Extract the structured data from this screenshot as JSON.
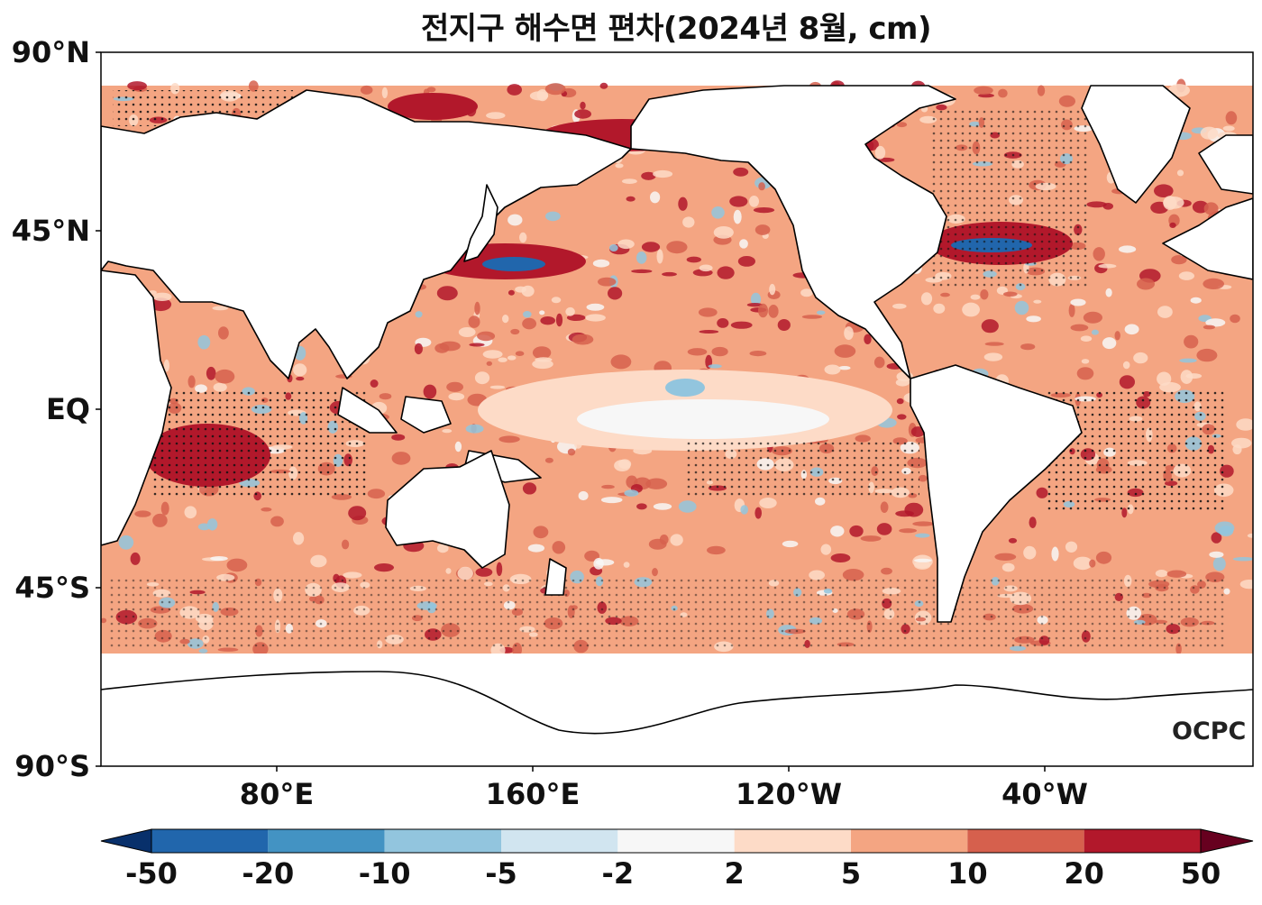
{
  "title": "전지구 해수면 편차(2024년 8월, cm)",
  "lat_labels": [
    "90°N",
    "45°N",
    "EQ",
    "45°S",
    "90°S"
  ],
  "lon_labels": [
    "80°E",
    "160°E",
    "120°W",
    "40°W"
  ],
  "colorbar": {
    "ticks": [
      "-50",
      "-20",
      "-10",
      "-5",
      "-2",
      "2",
      "5",
      "10",
      "20",
      "50"
    ],
    "colors": [
      "#08306b",
      "#2166ac",
      "#4393c3",
      "#92c5de",
      "#d1e5f0",
      "#f7f7f7",
      "#fddbc7",
      "#f4a582",
      "#d6604d",
      "#b2182b",
      "#67001f"
    ]
  },
  "logo": "OCPC",
  "colors": {
    "land": "#ffffff",
    "coast": "#000000",
    "ocean_base": "#f4a582"
  }
}
